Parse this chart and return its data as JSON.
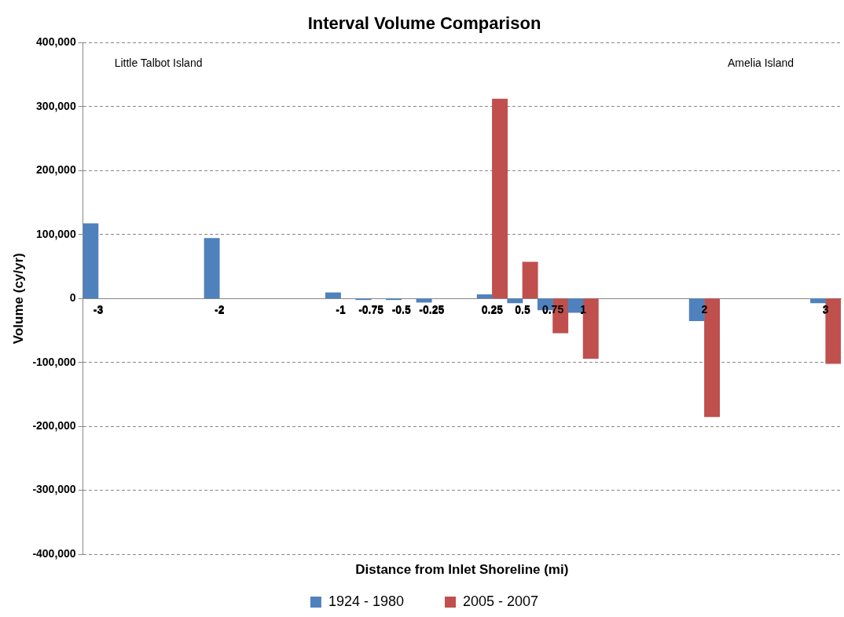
{
  "chart_data": {
    "type": "bar",
    "title": "Interval Volume Comparison",
    "xlabel": "Distance from Inlet Shoreline (mi)",
    "ylabel": "Volume (cy/yr)",
    "categories": [
      "-3",
      null,
      null,
      null,
      "-2",
      null,
      null,
      null,
      "-1",
      "-0.75",
      "-0.5",
      "-0.25",
      null,
      "0.25",
      "0.5",
      "0.75",
      "1",
      null,
      null,
      null,
      "2",
      null,
      null,
      null,
      "3"
    ],
    "series": [
      {
        "name": "1924 - 1980",
        "color": "#4f81bd",
        "values": [
          117000,
          null,
          null,
          null,
          94000,
          null,
          null,
          null,
          9000,
          -2000,
          -2000,
          -6000,
          null,
          6000,
          -7000,
          -18000,
          -22000,
          null,
          null,
          null,
          -35000,
          null,
          null,
          null,
          -7000
        ]
      },
      {
        "name": "2005 - 2007",
        "color": "#c0504d",
        "values": [
          null,
          null,
          null,
          null,
          null,
          null,
          null,
          null,
          null,
          null,
          null,
          null,
          null,
          312000,
          57000,
          -54000,
          -94000,
          null,
          null,
          null,
          -185000,
          null,
          null,
          null,
          -102000
        ]
      }
    ],
    "ylim": [
      -400000,
      400000
    ],
    "yticks": [
      {
        "value": -400000,
        "label": "-400,000"
      },
      {
        "value": -300000,
        "label": "-300,000"
      },
      {
        "value": -200000,
        "label": "-200,000"
      },
      {
        "value": -100000,
        "label": "-100,000"
      },
      {
        "value": 0,
        "label": "0"
      },
      {
        "value": 100000,
        "label": "100,000"
      },
      {
        "value": 200000,
        "label": "200,000"
      },
      {
        "value": 300000,
        "label": "300,000"
      },
      {
        "value": 400000,
        "label": "400,000"
      }
    ],
    "annotations": [
      "Little Talbot Island",
      "Amelia Island"
    ],
    "grid": "y",
    "legend": "bottom"
  }
}
